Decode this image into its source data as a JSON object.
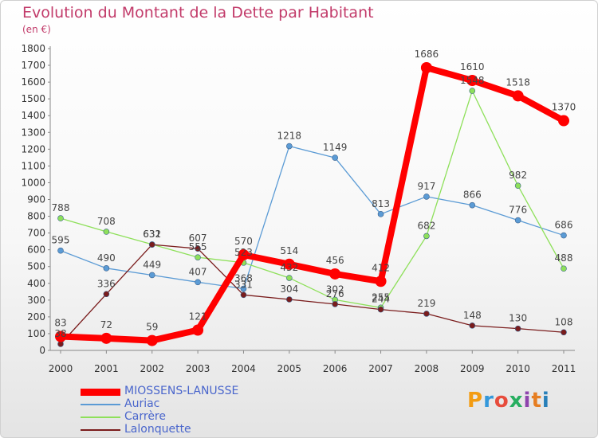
{
  "title": "Evolution du Montant de la Dette par Habitant",
  "unit": "(en €)",
  "logo": {
    "letters": [
      "P",
      "r",
      "o",
      "x",
      "i",
      "t",
      "i"
    ],
    "colors": [
      "#f39c12",
      "#3498db",
      "#e74c3c",
      "#27ae60",
      "#8e44ad",
      "#e67e22",
      "#2980b9"
    ]
  },
  "chart_data": {
    "type": "line",
    "x": [
      "2000",
      "2001",
      "2002",
      "2003",
      "2004",
      "2005",
      "2006",
      "2007",
      "2008",
      "2009",
      "2010",
      "2011"
    ],
    "ylim": [
      0,
      1800
    ],
    "yticks": [
      "0",
      "100",
      "200",
      "300",
      "400",
      "500",
      "600",
      "700",
      "800",
      "900",
      "1000",
      "1100",
      "1200",
      "1300",
      "1400",
      "1500",
      "1600",
      "1700",
      "1800"
    ],
    "grid": false,
    "legend_position": "bottom-left",
    "series": [
      {
        "name": "MIOSSENS-LANUSSE",
        "color": "#ff0000",
        "values": [
          83,
          72,
          59,
          121,
          570,
          514,
          456,
          412,
          1686,
          1610,
          1518,
          1370
        ],
        "labels": [
          "83",
          "72",
          "59",
          "121",
          "570",
          "514",
          "456",
          "412",
          "1686",
          "1610",
          "1518",
          "1370"
        ]
      },
      {
        "name": "Auriac",
        "color": "#5b9bd5",
        "values": [
          595,
          490,
          449,
          407,
          368,
          1218,
          1149,
          813,
          917,
          866,
          776,
          686
        ],
        "labels": [
          "595",
          "490",
          "449",
          "407",
          "368",
          "1218",
          "1149",
          "813",
          "917",
          "866",
          "776",
          "686"
        ]
      },
      {
        "name": "Carrère",
        "color": "#8ee05a",
        "values": [
          788,
          708,
          632,
          555,
          523,
          432,
          302,
          255,
          682,
          1548,
          982,
          488
        ],
        "labels": [
          "788",
          "708",
          "632",
          "555",
          "523",
          "432",
          "302",
          "255",
          "682",
          "1548",
          "982",
          "488"
        ]
      },
      {
        "name": "Lalonquette",
        "color": "#7a1c1c",
        "values": [
          38,
          336,
          631,
          607,
          331,
          304,
          276,
          244,
          219,
          148,
          130,
          108
        ],
        "labels": [
          "38",
          "336",
          "631",
          "607",
          "331",
          "304",
          "276",
          "244",
          "219",
          "148",
          "130",
          "108"
        ]
      }
    ]
  }
}
